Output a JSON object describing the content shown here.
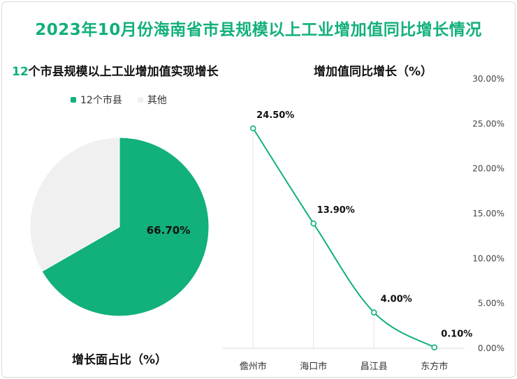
{
  "title": "2023年10月份海南省市县规模以上工业增加值同比增长情况",
  "left_panel": {
    "subtitle_num": "12",
    "subtitle_text": "个市县规模以上工业增加值实现增长"
  },
  "right_panel": {
    "subtitle": "增加值同比增长（%）"
  },
  "colors": {
    "accent": "#12b07a",
    "other": "#f0f0f0"
  },
  "chart_data": [
    {
      "type": "pie",
      "title": "增长面占比（%）",
      "legend": [
        "12个市县",
        "其他"
      ],
      "values": [
        66.7,
        33.3
      ],
      "labels": [
        "66.70%",
        ""
      ],
      "colors": [
        "#12b07a",
        "#f0f0f0"
      ]
    },
    {
      "type": "line",
      "title": "增加值同比增长（%）",
      "categories": [
        "儋州市",
        "海口市",
        "昌江县",
        "东方市"
      ],
      "values": [
        24.5,
        13.9,
        4.0,
        0.1
      ],
      "data_labels": [
        "24.50%",
        "13.90%",
        "4.00%",
        "0.10%"
      ],
      "ylim": [
        0,
        30
      ],
      "yticks": [
        "0.00%",
        "5.00%",
        "10.00%",
        "15.00%",
        "20.00%",
        "25.00%",
        "30.00%"
      ],
      "ytick_values": [
        0,
        5,
        10,
        15,
        20,
        25,
        30
      ]
    }
  ]
}
